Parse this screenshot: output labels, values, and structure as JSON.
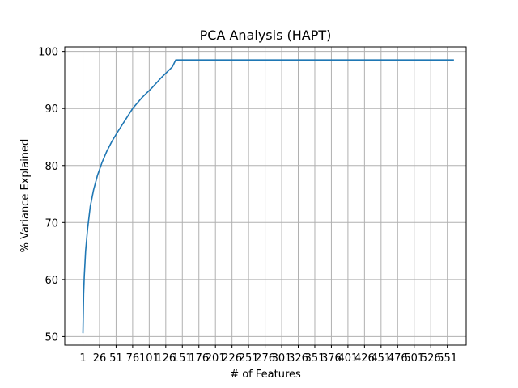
{
  "chart_data": {
    "type": "line",
    "title": "PCA Analysis (HAPT)",
    "xlabel": "# of Features",
    "ylabel": "% Variance Explained",
    "xlim": [
      -26.5,
      579.5
    ],
    "ylim": [
      48.5,
      100.8
    ],
    "x_ticks": [
      1,
      26,
      51,
      76,
      101,
      126,
      151,
      176,
      201,
      226,
      251,
      276,
      301,
      326,
      351,
      376,
      401,
      426,
      451,
      476,
      501,
      526,
      551
    ],
    "x_tick_labels": [
      "1",
      "26",
      "51",
      "76",
      "101",
      "126",
      "151",
      "176",
      "201",
      "226",
      "251",
      "276",
      "301",
      "326",
      "351",
      "376",
      "401",
      "426",
      "451",
      "476",
      "501",
      "526",
      "551"
    ],
    "y_ticks": [
      50,
      60,
      70,
      80,
      90,
      100
    ],
    "y_tick_labels": [
      "50",
      "60",
      "70",
      "80",
      "90",
      "100"
    ],
    "grid": true,
    "color": "#1f77b4",
    "series": [
      {
        "x": [
          1,
          2,
          3,
          5,
          8,
          12,
          17,
          23,
          30,
          37,
          45,
          55,
          65,
          76,
          90,
          105,
          120,
          136,
          141,
          200,
          300,
          400,
          500,
          561
        ],
        "values": [
          50.6,
          57.5,
          60.6,
          65.0,
          68.9,
          72.8,
          75.7,
          78.3,
          80.6,
          82.5,
          84.3,
          86.2,
          88.0,
          90.0,
          91.9,
          93.6,
          95.5,
          97.3,
          98.5,
          98.5,
          98.5,
          98.5,
          98.5,
          98.5
        ]
      }
    ]
  }
}
